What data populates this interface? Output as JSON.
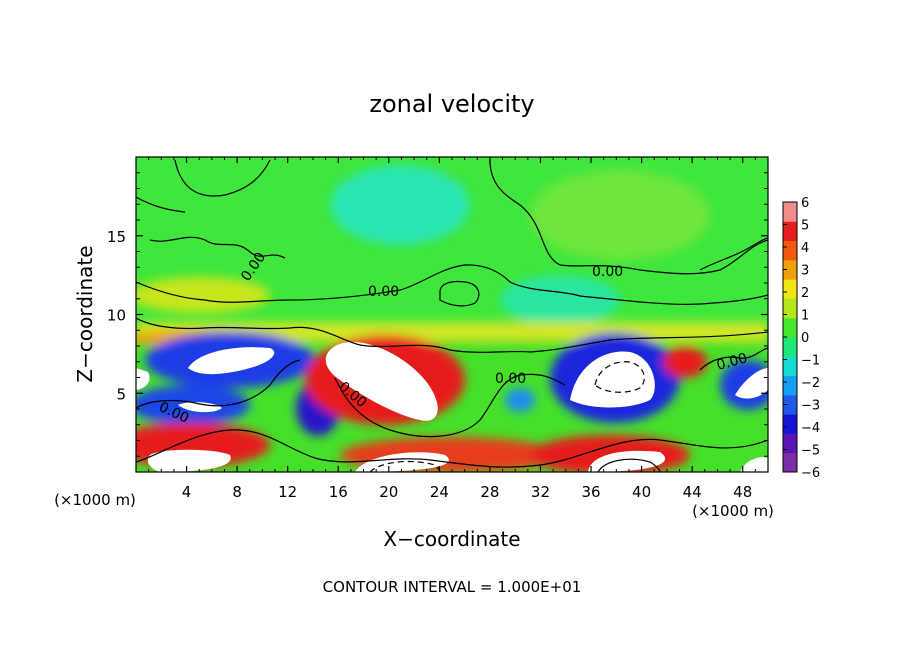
{
  "chart_data": {
    "type": "heatmap",
    "title": "zonal velocity",
    "xlabel": "X−coordinate",
    "ylabel": "Z−coordinate",
    "x_unit_left": "(×1000 m)",
    "x_unit_right": "(×1000 m)",
    "xlim": [
      0,
      50
    ],
    "ylim": [
      0,
      20
    ],
    "x_ticks": [
      4,
      8,
      12,
      16,
      20,
      24,
      28,
      32,
      36,
      40,
      44,
      48
    ],
    "x_tick_labels": [
      "4",
      "8",
      "12",
      "16",
      "20",
      "24",
      "28",
      "32",
      "36",
      "40",
      "44",
      "48"
    ],
    "y_ticks": [
      5,
      10,
      15
    ],
    "y_tick_labels": [
      "5",
      "10",
      "15"
    ],
    "colorbar": {
      "range": [
        -6,
        6
      ],
      "ticks": [
        6,
        5,
        4,
        3,
        2,
        1,
        0,
        -1,
        -2,
        -3,
        -4,
        -5,
        -6
      ],
      "tick_labels": [
        "6",
        "5",
        "4",
        "3",
        "2",
        "1",
        "0",
        "−1",
        "−2",
        "−3",
        "−4",
        "−5",
        "−6"
      ],
      "colors": [
        "#7a2fa6",
        "#5a14b4",
        "#1414d2",
        "#1e5ae6",
        "#14a0f0",
        "#14dcd2",
        "#1ee678",
        "#46e628",
        "#b4e61e",
        "#f0e614",
        "#f0a00a",
        "#f05a0a",
        "#e61e1e",
        "#f08c8c"
      ]
    },
    "contour_labels": [
      "0.00",
      "0.00",
      "0.00",
      "0.00",
      "0.00",
      "0.00",
      "0.00"
    ],
    "footer": "CONTOUR INTERVAL = 1.000E+01"
  }
}
